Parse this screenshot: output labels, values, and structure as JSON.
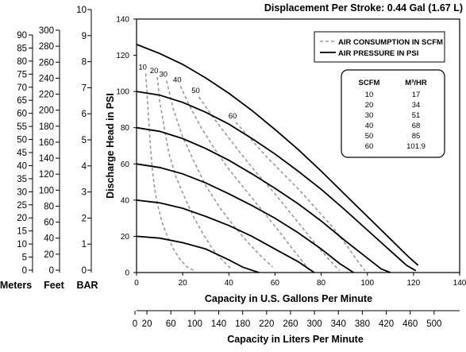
{
  "chart_data": {
    "type": "line",
    "title": "Displacement Per Stroke: 0.44 Gal (1.67 L)",
    "xlabel": "Capacity in U.S. Gallons Per Minute",
    "ylabel": "Discharge Head in PSI",
    "x2label": "Capacity in Liters Per Minute",
    "xlim": [
      0,
      140
    ],
    "ylim": [
      0,
      140
    ],
    "x_ticks": [
      0,
      20,
      40,
      60,
      80,
      100,
      120,
      140
    ],
    "y_ticks": [
      0,
      20,
      40,
      60,
      80,
      100,
      120,
      140
    ],
    "x2_ticks": [
      "0",
      "20",
      "60",
      "100",
      "140",
      "180",
      "220",
      "260",
      "300",
      "340",
      "380",
      "420",
      "460",
      "500"
    ],
    "x2_tick_values": [
      0,
      20,
      60,
      100,
      140,
      180,
      220,
      260,
      300,
      340,
      380,
      420,
      460,
      500
    ],
    "meters_ticks": [
      "0",
      "5",
      "10",
      "15",
      "20",
      "25",
      "30",
      "35",
      "40",
      "45",
      "50",
      "55",
      "60",
      "65",
      "70",
      "75",
      "80",
      "85",
      "90"
    ],
    "feet_ticks": [
      "0",
      "20",
      "40",
      "60",
      "80",
      "100",
      "120",
      "140",
      "160",
      "180",
      "200",
      "220",
      "240",
      "260",
      "280",
      "300"
    ],
    "bar_ticks": [
      "0",
      "1",
      "2",
      "3",
      "4",
      "5",
      "6",
      "7",
      "8",
      "9",
      "10"
    ],
    "meters_label": "Meters",
    "feet_label": "Feet",
    "bar_label": "BAR",
    "legend": {
      "position": "top-right",
      "entries": [
        {
          "label": "AIR CONSUMPTION IN SCFM",
          "style": "dashed",
          "color": "#999999"
        },
        {
          "label": "AIR PRESSURE IN PSI",
          "style": "solid",
          "color": "#000000"
        }
      ]
    },
    "scfm_table": {
      "headers": [
        "SCFM",
        "M³/HR"
      ],
      "rows": [
        [
          "10",
          "17"
        ],
        [
          "20",
          "34"
        ],
        [
          "30",
          "51"
        ],
        [
          "40",
          "68"
        ],
        [
          "50",
          "85"
        ],
        [
          "60",
          "101.9"
        ]
      ]
    },
    "series": [
      {
        "name": "",
        "style": "solid",
        "points": [
          [
            0,
            20
          ],
          [
            10,
            19
          ],
          [
            20,
            16.5
          ],
          [
            30,
            13
          ],
          [
            40,
            7
          ],
          [
            46,
            3
          ],
          [
            53,
            0
          ]
        ]
      },
      {
        "name": "",
        "style": "solid",
        "points": [
          [
            0,
            40
          ],
          [
            10,
            38.5
          ],
          [
            20,
            35.5
          ],
          [
            30,
            31
          ],
          [
            40,
            26
          ],
          [
            50,
            20
          ],
          [
            60,
            13
          ],
          [
            70,
            6
          ],
          [
            77,
            0
          ]
        ]
      },
      {
        "name": "",
        "style": "solid",
        "points": [
          [
            0,
            60
          ],
          [
            10,
            58
          ],
          [
            20,
            54.5
          ],
          [
            30,
            49.5
          ],
          [
            40,
            43.5
          ],
          [
            50,
            37
          ],
          [
            60,
            30
          ],
          [
            70,
            22
          ],
          [
            80,
            13
          ],
          [
            88,
            5
          ],
          [
            94,
            0
          ]
        ]
      },
      {
        "name": "",
        "style": "solid",
        "points": [
          [
            0,
            80
          ],
          [
            10,
            78
          ],
          [
            20,
            74
          ],
          [
            30,
            68.5
          ],
          [
            40,
            62
          ],
          [
            50,
            54.5
          ],
          [
            60,
            46.5
          ],
          [
            70,
            38
          ],
          [
            80,
            28.5
          ],
          [
            90,
            18
          ],
          [
            100,
            8
          ],
          [
            106,
            2
          ],
          [
            110,
            0
          ]
        ]
      },
      {
        "name": "",
        "style": "solid",
        "points": [
          [
            0,
            100
          ],
          [
            10,
            98
          ],
          [
            20,
            94
          ],
          [
            30,
            88.5
          ],
          [
            40,
            82
          ],
          [
            50,
            74
          ],
          [
            60,
            65.5
          ],
          [
            70,
            56
          ],
          [
            80,
            46
          ],
          [
            90,
            35
          ],
          [
            100,
            23.5
          ],
          [
            110,
            12
          ],
          [
            117,
            4
          ],
          [
            121,
            1
          ]
        ]
      },
      {
        "name": "",
        "style": "solid",
        "points": [
          [
            0,
            126
          ],
          [
            10,
            121
          ],
          [
            20,
            115
          ],
          [
            30,
            107.5
          ],
          [
            40,
            99
          ],
          [
            50,
            89.5
          ],
          [
            60,
            79
          ],
          [
            70,
            68
          ],
          [
            80,
            56
          ],
          [
            90,
            43.5
          ],
          [
            100,
            31
          ],
          [
            110,
            18.5
          ],
          [
            118,
            8.5
          ],
          [
            122,
            4
          ]
        ]
      },
      {
        "name": "10",
        "style": "dashed",
        "points": [
          [
            4,
            110
          ],
          [
            5,
            90
          ],
          [
            6,
            70
          ],
          [
            7,
            55
          ],
          [
            8,
            45
          ],
          [
            9,
            38
          ],
          [
            11,
            28
          ],
          [
            13,
            21
          ],
          [
            16,
            13
          ],
          [
            19,
            7
          ],
          [
            22,
            3
          ],
          [
            25,
            1
          ]
        ]
      },
      {
        "name": "20",
        "style": "dashed",
        "points": [
          [
            9,
            108
          ],
          [
            10,
            95
          ],
          [
            12,
            80
          ],
          [
            14,
            66
          ],
          [
            17,
            53
          ],
          [
            21,
            41
          ],
          [
            25,
            30
          ],
          [
            29,
            21
          ],
          [
            33,
            13
          ],
          [
            37,
            7
          ],
          [
            41,
            2
          ]
        ]
      },
      {
        "name": "30",
        "style": "dashed",
        "points": [
          [
            13,
            106
          ],
          [
            16,
            90
          ],
          [
            20,
            75
          ],
          [
            25,
            61
          ],
          [
            30,
            48
          ],
          [
            36,
            36
          ],
          [
            42,
            26
          ],
          [
            48,
            17
          ],
          [
            54,
            9
          ],
          [
            59,
            3
          ]
        ]
      },
      {
        "name": "40",
        "style": "dashed",
        "points": [
          [
            19,
            103
          ],
          [
            23,
            92
          ],
          [
            28,
            80
          ],
          [
            34,
            68
          ],
          [
            40,
            57
          ],
          [
            47,
            46
          ],
          [
            54,
            35
          ],
          [
            61,
            24
          ],
          [
            67,
            14
          ],
          [
            72,
            6
          ],
          [
            75,
            1
          ]
        ]
      },
      {
        "name": "50",
        "style": "dashed",
        "points": [
          [
            27,
            97
          ],
          [
            33,
            86
          ],
          [
            39,
            76
          ],
          [
            45,
            66
          ],
          [
            52,
            55
          ],
          [
            59,
            45
          ],
          [
            66,
            34
          ],
          [
            73,
            23
          ],
          [
            80,
            12
          ],
          [
            85,
            5
          ],
          [
            88,
            1
          ]
        ]
      },
      {
        "name": "60",
        "style": "dashed",
        "points": [
          [
            43,
            83
          ],
          [
            50,
            73
          ],
          [
            57,
            63
          ],
          [
            64,
            54
          ],
          [
            71,
            45
          ],
          [
            78,
            35
          ],
          [
            85,
            25
          ],
          [
            91,
            15
          ],
          [
            96,
            6
          ],
          [
            99,
            1
          ]
        ]
      }
    ]
  }
}
